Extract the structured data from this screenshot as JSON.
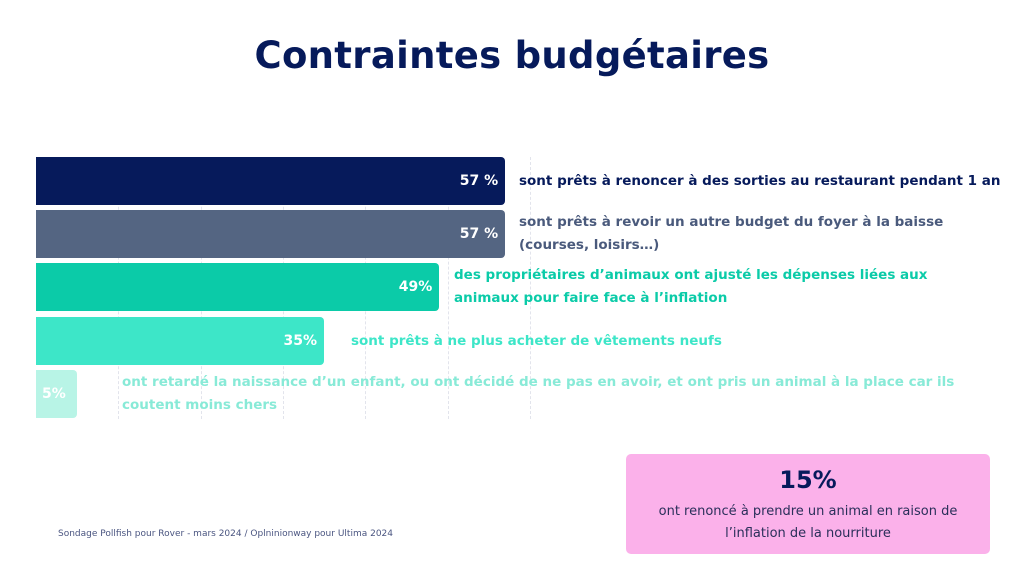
{
  "page": {
    "title": "Contraintes budgétaires",
    "source": "Sondage Pollfish pour Rover - mars 2024 / Oplninionway pour Ultima 2024"
  },
  "callout": {
    "value": "15%",
    "text_line1": "ont renoncé à prendre un animal en raison de",
    "text_line2": "l’inflation de la nourriture",
    "background": "#fbb1ea"
  },
  "chart_data": {
    "type": "bar",
    "orientation": "horizontal",
    "title": "Contraintes budgétaires",
    "xlabel": "",
    "ylabel": "",
    "xlim": [
      0,
      60
    ],
    "grid": true,
    "grid_step": 10,
    "categories": [
      "sont prêts à renoncer à des sorties au restaurant pendant 1 an",
      "sont prêts à revoir un autre budget du foyer à la baisse (courses, loisirs…)",
      "des propriétaires d’animaux ont  ajusté les dépenses liées aux animaux pour faire face à l’inflation",
      "sont prêts à ne plus acheter de vêtements neufs",
      "ont retardé la naissance d’un enfant, ou ont décidé de ne pas en avoir, et ont pris un animal à la place car ils coutent moins chers"
    ],
    "values": [
      57,
      57,
      49,
      35,
      5
    ],
    "bars": [
      {
        "value": 57,
        "value_label": "57 %",
        "color": "#061a5b",
        "text_color": "#061a5b",
        "label_lines": [
          "sont prêts à renoncer à des sorties au restaurant pendant 1 an"
        ]
      },
      {
        "value": 57,
        "value_label": "57 %",
        "color": "#546582",
        "text_color": "#4a5a7c",
        "label_lines": [
          "sont prêts à revoir un autre budget du foyer à la baisse",
          "(courses, loisirs…)"
        ]
      },
      {
        "value": 49,
        "value_label": "49%",
        "color": "#0bcba8",
        "text_color": "#0bcba8",
        "label_lines": [
          "des propriétaires d’animaux ont  ajusté les dépenses liées aux",
          "animaux pour faire face à l’inflation"
        ]
      },
      {
        "value": 35,
        "value_label": "35%",
        "color": "#3de6c8",
        "text_color": "#3de6c8",
        "label_lines": [
          "sont prêts à ne plus acheter de vêtements neufs"
        ]
      },
      {
        "value": 5,
        "value_label": "5%",
        "color": "#b8f4e6",
        "text_color": "#88ead7",
        "label_lines": [
          "ont retardé la naissance d’un enfant, ou ont décidé de ne pas en avoir, et ont pris un animal à la place car ils",
          "coutent moins chers"
        ]
      }
    ]
  }
}
